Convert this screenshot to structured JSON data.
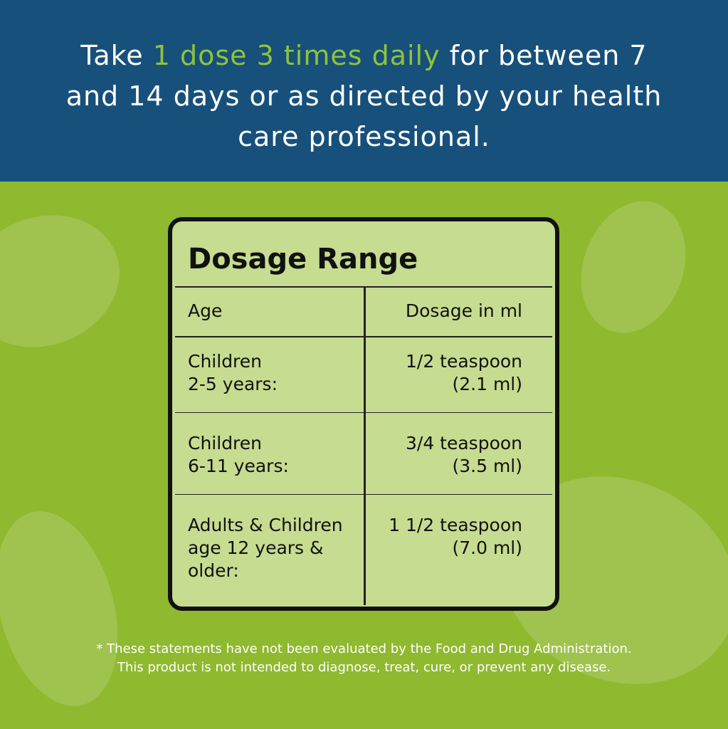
{
  "header": {
    "text_before": "Take ",
    "highlight": "1 dose 3 times daily",
    "text_after": " for between 7 and 14 days or as directed by your health care professional."
  },
  "table": {
    "title": "Dosage Range",
    "columns": [
      "Age",
      "Dosage in ml"
    ],
    "rows": [
      [
        [
          "Children",
          "2-5 years:"
        ],
        [
          "1/2 teaspoon",
          "(2.1 ml)"
        ]
      ],
      [
        [
          "Children",
          "6-11 years:"
        ],
        [
          "3/4 teaspoon",
          "(3.5 ml)"
        ]
      ],
      [
        [
          "Adults & Children",
          "age 12 years &",
          "older:"
        ],
        [
          "1 1/2 teaspoon",
          "(7.0 ml)"
        ]
      ]
    ]
  },
  "footer": {
    "lines": [
      "* These statements have not been evaluated by the Food and Drug Administration.",
      "This product is not intended to diagnose, treat, cure, or prevent any disease."
    ]
  }
}
